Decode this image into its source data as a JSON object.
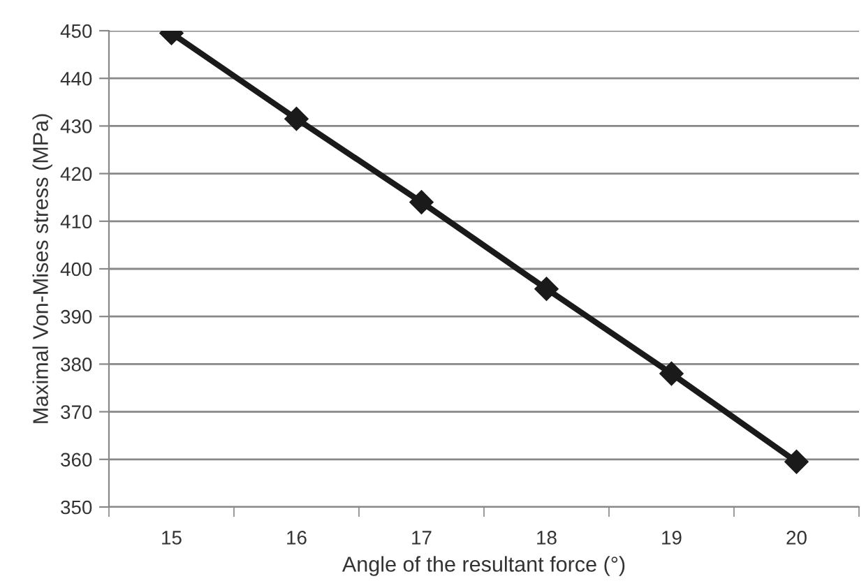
{
  "chart_data": {
    "type": "line",
    "xlabel": "Angle of the resultant force (°)",
    "ylabel": "Maximal Von-Mises stress (MPa)",
    "categories": [
      "15",
      "16",
      "17",
      "18",
      "19",
      "20"
    ],
    "series": [
      {
        "color": "#1a1a1a",
        "values": [
          449.5,
          431.5,
          414,
          395.8,
          378,
          359.5
        ]
      }
    ],
    "ylim": [
      350,
      450
    ],
    "yticks": [
      350,
      360,
      370,
      380,
      390,
      400,
      410,
      420,
      430,
      440,
      450
    ],
    "grid": "y",
    "marker": "diamond",
    "line_style": "solid"
  }
}
